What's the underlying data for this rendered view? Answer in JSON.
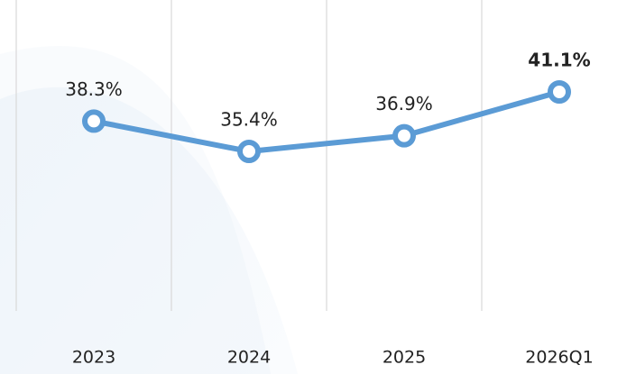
{
  "chart_data": {
    "type": "line",
    "categories": [
      "2023",
      "2024",
      "2025",
      "2026Q1"
    ],
    "values": [
      38.3,
      35.4,
      36.9,
      41.1
    ],
    "value_labels": [
      "38.3%",
      "35.4%",
      "36.9%",
      "41.1%"
    ],
    "color": "#5b9bd5"
  }
}
